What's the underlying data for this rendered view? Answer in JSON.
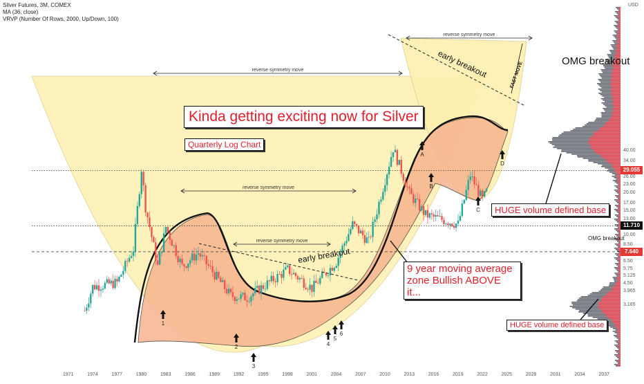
{
  "legend": {
    "symbol": "Silver Futures, 3M, COMEX",
    "ma": "MA (36, close)",
    "vrvp": "VRVP (Number Of Rows, 2000, Up/Down, 100)"
  },
  "annotations": {
    "main_title": "Kinda getting exciting now for Silver",
    "subtitle": "Quarterly Log Chart",
    "ma_note": "9 year moving average zone Bullish ABOVE it...",
    "volume_note_1": "HUGE volume defined base",
    "volume_note_2": "HUGE volume defined base",
    "omg_large": "OMG breakout",
    "omg_small": "OMG breakout",
    "symmetry": [
      "reverse symmetry move",
      "reverse symmetry move",
      "reverse symmetry move",
      "reverse symmetry move"
    ],
    "early_breakout": [
      "early breakout",
      "early breakout"
    ],
    "fast_move": "FAST MOVE",
    "markers": [
      "1",
      "2",
      "3",
      "4",
      "5",
      "6",
      "A",
      "B",
      "C",
      "D"
    ]
  },
  "colors": {
    "up": "#26a69a",
    "down": "#ef5350",
    "cup_fill": "#fdf0b0",
    "base_fill": "#f6b48f",
    "price_tag": "#e53935",
    "volume_up": "#3a3f4b",
    "volume_down": "#f23645"
  },
  "chart_data": {
    "type": "candlestick",
    "title": "",
    "scale": "log",
    "x_ticks": [
      "1971",
      "1974",
      "1977",
      "1980",
      "1983",
      "1986",
      "1989",
      "1992",
      "1995",
      "1998",
      "2001",
      "2004",
      "2007",
      "2010",
      "2013",
      "2016",
      "2019",
      "2022",
      "2025",
      "2028",
      "2031",
      "2034",
      "2037"
    ],
    "y_ticks": [
      "40.00",
      "34.00",
      "26.00",
      "23.00",
      "20.00",
      "17.00",
      "15.00",
      "13.00",
      "10.00",
      "8.50",
      "6.50",
      "5.75",
      "5.125",
      "4.50",
      "3.965",
      "3.165"
    ],
    "price_labels": [
      "29.055",
      "11.710",
      "7.640"
    ],
    "y_unit": "USD",
    "approx_points": [
      {
        "x": 1973,
        "y": 2.9
      },
      {
        "x": 1974,
        "y": 4.3
      },
      {
        "x": 1977,
        "y": 4.6
      },
      {
        "x": 1979,
        "y": 8.0
      },
      {
        "x": 1980,
        "y": 30.0
      },
      {
        "x": 1980.5,
        "y": 16.0
      },
      {
        "x": 1982,
        "y": 6.0
      },
      {
        "x": 1983,
        "y": 11.5
      },
      {
        "x": 1985,
        "y": 6.0
      },
      {
        "x": 1987,
        "y": 7.5
      },
      {
        "x": 1991,
        "y": 3.7
      },
      {
        "x": 1993,
        "y": 3.6
      },
      {
        "x": 1998,
        "y": 5.7
      },
      {
        "x": 2001,
        "y": 4.2
      },
      {
        "x": 2004,
        "y": 6.5
      },
      {
        "x": 2006,
        "y": 12.0
      },
      {
        "x": 2008,
        "y": 9.0
      },
      {
        "x": 2011,
        "y": 42.0
      },
      {
        "x": 2013,
        "y": 20.0
      },
      {
        "x": 2015,
        "y": 14.0
      },
      {
        "x": 2019,
        "y": 12.0
      },
      {
        "x": 2020.5,
        "y": 27.0
      },
      {
        "x": 2022,
        "y": 18.0
      },
      {
        "x": 2022.5,
        "y": 20.5
      }
    ],
    "levels": [
      {
        "value": 29.055,
        "style": "dotted"
      },
      {
        "value": 11.71,
        "style": "dotted"
      },
      {
        "value": 7.64,
        "style": "dashed"
      }
    ],
    "grid": false,
    "legend_position": "top-left"
  }
}
